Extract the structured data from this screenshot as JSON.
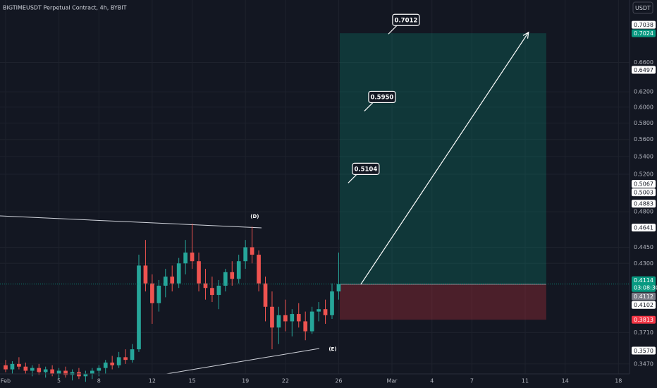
{
  "chart_data": {
    "type": "candlestick",
    "title": "BIGTIMEUSDT Perpetual Contract, 4h, BYBIT",
    "currency": "USDT",
    "log_scale": true,
    "grid": true,
    "up_color": "#26a69a",
    "down_color": "#ef5350",
    "xlim": [
      0.577,
      47.83
    ],
    "ylim": [
      0.3397,
      0.754
    ],
    "xticks": [
      {
        "value": 1,
        "label": "Feb"
      },
      5,
      8,
      12,
      15,
      19,
      22,
      26,
      {
        "value": 30,
        "label": "Mar"
      },
      {
        "value": 33,
        "label": "4"
      },
      {
        "value": 36,
        "label": "7"
      },
      {
        "value": 40,
        "label": "11"
      },
      {
        "value": 43,
        "label": "14"
      },
      {
        "value": 47,
        "label": "18"
      }
    ],
    "yticks": [
      {
        "value": 0.347,
        "label": "0.3470"
      },
      {
        "value": 0.371,
        "label": "0.3710"
      },
      {
        "value": 0.43,
        "label": "0.4300"
      },
      {
        "value": 0.445,
        "label": "0.4450"
      },
      {
        "value": 0.48,
        "label": "0.4800"
      },
      {
        "value": 0.52,
        "label": "0.5200"
      },
      {
        "value": 0.54,
        "label": "0.5400"
      },
      {
        "value": 0.56,
        "label": "0.5600"
      },
      {
        "value": 0.58,
        "label": "0.5800"
      },
      {
        "value": 0.6,
        "label": "0.6000"
      },
      {
        "value": 0.62,
        "label": "0.6200"
      },
      {
        "value": 0.66,
        "label": "0.6600"
      }
    ],
    "x": [
      1,
      1.5,
      2,
      2.5,
      3,
      3.5,
      4,
      4.5,
      5,
      5.5,
      6,
      6.5,
      7,
      7.5,
      8,
      8.5,
      9,
      9.5,
      10,
      10.5,
      11,
      11.5,
      12,
      12.5,
      13,
      13.5,
      14,
      14.5,
      15,
      15.5,
      16,
      16.5,
      17,
      17.5,
      18,
      18.5,
      19,
      19.5,
      20,
      20.5,
      21,
      21.5,
      22,
      22.5,
      23,
      23.5,
      24,
      24.5,
      25,
      25.5,
      26
    ],
    "candles": [
      [
        0.346,
        0.35,
        0.341,
        0.343
      ],
      [
        0.343,
        0.349,
        0.34,
        0.347
      ],
      [
        0.347,
        0.352,
        0.343,
        0.345
      ],
      [
        0.345,
        0.348,
        0.34,
        0.342
      ],
      [
        0.342,
        0.346,
        0.338,
        0.344
      ],
      [
        0.344,
        0.347,
        0.339,
        0.341
      ],
      [
        0.341,
        0.345,
        0.337,
        0.343
      ],
      [
        0.343,
        0.346,
        0.338,
        0.34
      ],
      [
        0.34,
        0.344,
        0.336,
        0.342
      ],
      [
        0.342,
        0.345,
        0.337,
        0.339
      ],
      [
        0.339,
        0.343,
        0.335,
        0.341
      ],
      [
        0.341,
        0.344,
        0.336,
        0.338
      ],
      [
        0.338,
        0.342,
        0.334,
        0.34
      ],
      [
        0.34,
        0.344,
        0.336,
        0.342
      ],
      [
        0.342,
        0.346,
        0.338,
        0.344
      ],
      [
        0.344,
        0.35,
        0.34,
        0.348
      ],
      [
        0.348,
        0.353,
        0.343,
        0.346
      ],
      [
        0.346,
        0.356,
        0.344,
        0.352
      ],
      [
        0.352,
        0.358,
        0.347,
        0.35
      ],
      [
        0.35,
        0.362,
        0.348,
        0.358
      ],
      [
        0.358,
        0.438,
        0.356,
        0.428
      ],
      [
        0.428,
        0.452,
        0.405,
        0.412
      ],
      [
        0.412,
        0.42,
        0.378,
        0.395
      ],
      [
        0.395,
        0.415,
        0.388,
        0.41
      ],
      [
        0.41,
        0.425,
        0.4,
        0.418
      ],
      [
        0.418,
        0.428,
        0.405,
        0.412
      ],
      [
        0.412,
        0.435,
        0.408,
        0.43
      ],
      [
        0.43,
        0.452,
        0.42,
        0.44
      ],
      [
        0.44,
        0.468,
        0.425,
        0.432
      ],
      [
        0.432,
        0.44,
        0.405,
        0.412
      ],
      [
        0.412,
        0.425,
        0.398,
        0.408
      ],
      [
        0.408,
        0.418,
        0.396,
        0.402
      ],
      [
        0.402,
        0.415,
        0.39,
        0.41
      ],
      [
        0.41,
        0.425,
        0.405,
        0.422
      ],
      [
        0.422,
        0.432,
        0.41,
        0.416
      ],
      [
        0.416,
        0.438,
        0.412,
        0.432
      ],
      [
        0.432,
        0.452,
        0.425,
        0.445
      ],
      [
        0.445,
        0.465,
        0.43,
        0.438
      ],
      [
        0.438,
        0.442,
        0.405,
        0.412
      ],
      [
        0.412,
        0.418,
        0.38,
        0.392
      ],
      [
        0.392,
        0.405,
        0.358,
        0.375
      ],
      [
        0.375,
        0.392,
        0.362,
        0.385
      ],
      [
        0.385,
        0.398,
        0.372,
        0.38
      ],
      [
        0.38,
        0.39,
        0.368,
        0.386
      ],
      [
        0.386,
        0.395,
        0.375,
        0.38
      ],
      [
        0.38,
        0.388,
        0.365,
        0.372
      ],
      [
        0.372,
        0.392,
        0.37,
        0.388
      ],
      [
        0.388,
        0.396,
        0.38,
        0.39
      ],
      [
        0.39,
        0.398,
        0.378,
        0.385
      ],
      [
        0.385,
        0.412,
        0.382,
        0.405
      ],
      [
        0.405,
        0.44,
        0.398,
        0.4114
      ]
    ],
    "position": {
      "entry": 0.4112,
      "target": 0.7024,
      "stop": 0.3813,
      "start": 26.08,
      "end": 41.58
    },
    "arrow": {
      "x": [
        27.66,
        40.25
      ],
      "y": [
        0.4112,
        0.7038
      ]
    },
    "annotations": [
      {
        "value": 0.7012,
        "label": "0.7012",
        "x": 29.73
      },
      {
        "value": 0.595,
        "label": "0.5950",
        "x": 27.93
      },
      {
        "value": 0.5104,
        "label": "0.5104",
        "x": 26.71
      }
    ],
    "wave_labels": [
      {
        "text": "(D)",
        "x": 19.7,
        "value": 0.475
      },
      {
        "text": "(E)",
        "x": 25.55,
        "value": 0.358
      }
    ],
    "price_labels": [
      {
        "value": 0.7038,
        "label": "0.7038",
        "bg": "#ffffff",
        "fg": "#131722"
      },
      {
        "value": 0.7024,
        "label": "0.7024",
        "bg": "#089981",
        "fg": "#ffffff"
      },
      {
        "value": 0.6497,
        "label": "0.6497",
        "bg": "#ffffff",
        "fg": "#131722"
      },
      {
        "value": 0.5067,
        "label": "0.5067",
        "bg": "#ffffff",
        "fg": "#131722"
      },
      {
        "value": 0.5003,
        "label": "0.5003",
        "bg": "#ffffff",
        "fg": "#131722"
      },
      {
        "value": 0.4883,
        "label": "0.4883",
        "bg": "#ffffff",
        "fg": "#131722"
      },
      {
        "value": 0.4641,
        "label": "0.4641",
        "bg": "#ffffff",
        "fg": "#131722"
      },
      {
        "value": 0.4114,
        "label": "0.4114",
        "bg": "#089981",
        "fg": "#ffffff",
        "sublabel": "03:08:30"
      },
      {
        "value": 0.4112,
        "label": "0.4112",
        "bg": "#787b86",
        "fg": "#ffffff"
      },
      {
        "value": 0.4102,
        "label": "0.4102",
        "bg": "#ffffff",
        "fg": "#131722"
      },
      {
        "value": 0.3813,
        "label": "0.3813",
        "bg": "#f23645",
        "fg": "#ffffff"
      },
      {
        "value": 0.357,
        "label": "0.3570",
        "bg": "#ffffff",
        "fg": "#131722"
      }
    ]
  }
}
